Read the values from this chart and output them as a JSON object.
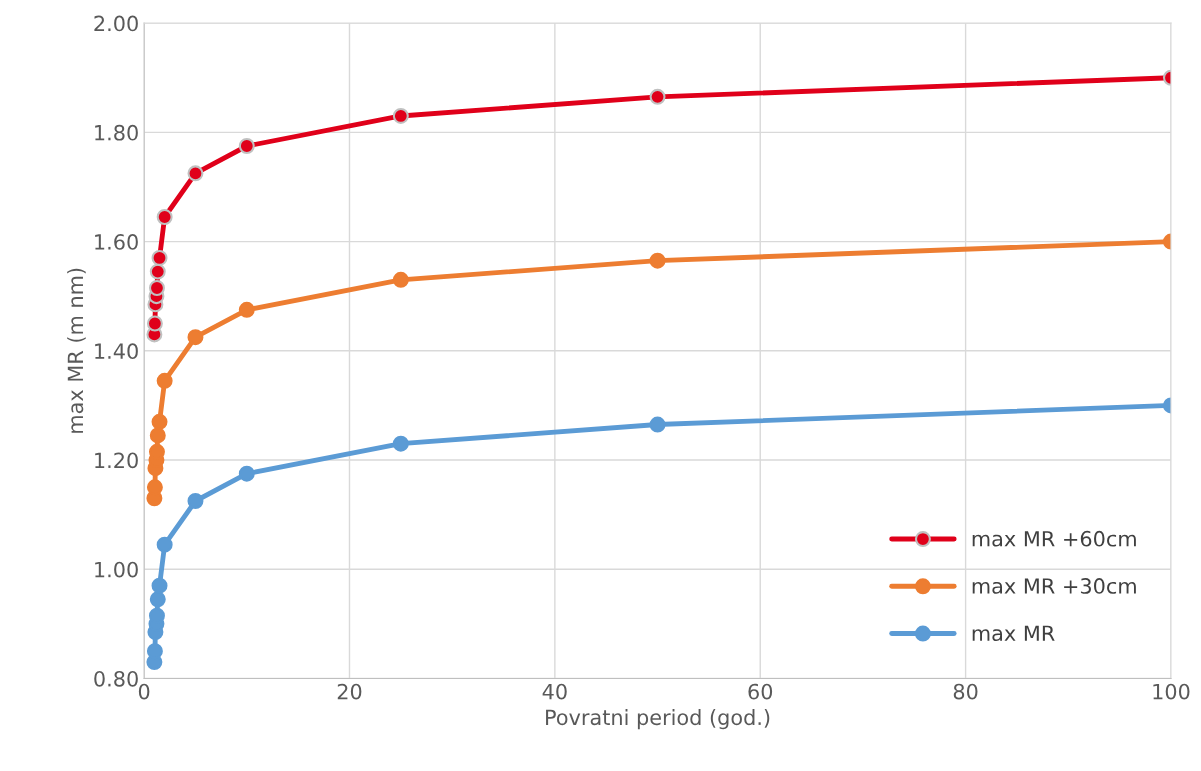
{
  "chart_data": {
    "type": "line",
    "xlabel": "Povratni period (god.)",
    "ylabel": "max MR (m nm)",
    "x": [
      1.0,
      1.05,
      1.1,
      1.2,
      1.25,
      1.33,
      1.5,
      2,
      5,
      10,
      25,
      50,
      100
    ],
    "series": [
      {
        "name": "max MR +60cm",
        "color": "#e0001a",
        "values": [
          1.43,
          1.45,
          1.485,
          1.5,
          1.515,
          1.545,
          1.57,
          1.645,
          1.725,
          1.775,
          1.83,
          1.865,
          1.9
        ]
      },
      {
        "name": "max MR +30cm",
        "color": "#ed7d31",
        "values": [
          1.13,
          1.15,
          1.185,
          1.2,
          1.215,
          1.245,
          1.27,
          1.345,
          1.425,
          1.475,
          1.53,
          1.565,
          1.6
        ]
      },
      {
        "name": "max MR",
        "color": "#5b9bd5",
        "values": [
          0.83,
          0.85,
          0.885,
          0.9,
          0.915,
          0.945,
          0.97,
          1.045,
          1.125,
          1.175,
          1.23,
          1.265,
          1.3
        ]
      }
    ],
    "xlim": [
      0,
      100
    ],
    "xticks": [
      0,
      20,
      40,
      60,
      80,
      100
    ],
    "ylim": [
      0.8,
      2.0
    ],
    "yticks": [
      {
        "value": 0.8,
        "label": "0.80"
      },
      {
        "value": 1.0,
        "label": "1.00"
      },
      {
        "value": 1.2,
        "label": "1.20"
      },
      {
        "value": 1.4,
        "label": "1.40"
      },
      {
        "value": 1.6,
        "label": "1.60"
      },
      {
        "value": 1.8,
        "label": "1.80"
      },
      {
        "value": 2.0,
        "label": "2.00"
      }
    ],
    "grid": true,
    "legend": "bottom right",
    "marker": "circle",
    "line_style": "solid"
  }
}
